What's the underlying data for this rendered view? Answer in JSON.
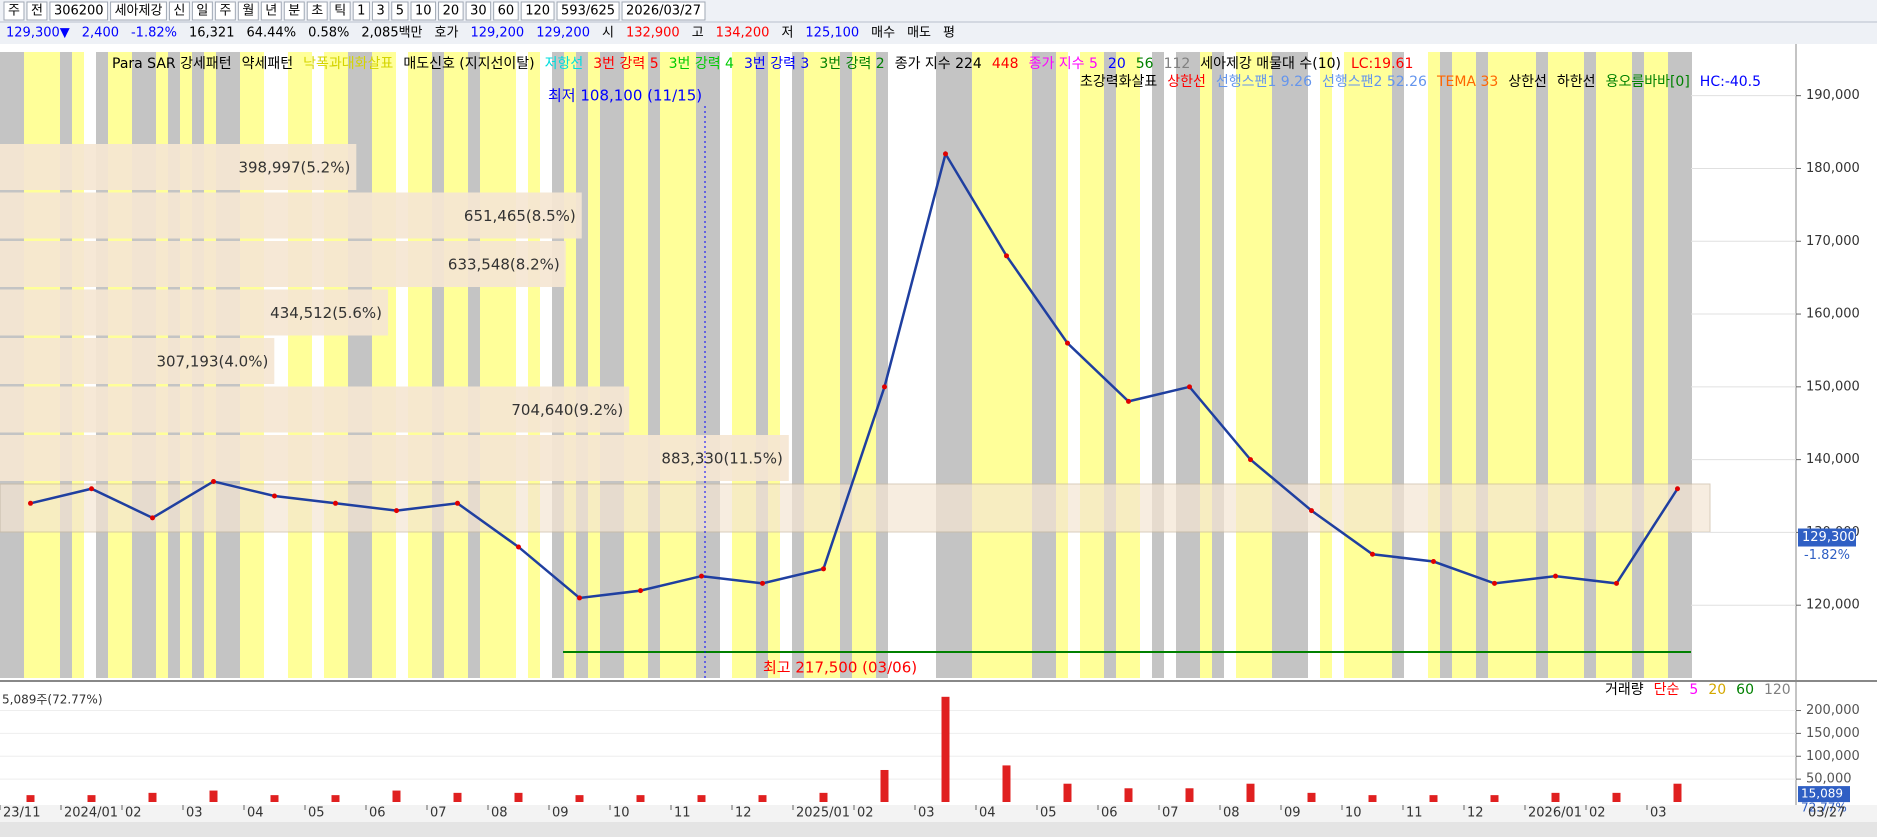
{
  "toolbar": {
    "items": [
      "주",
      "전",
      "306200",
      "세아제강",
      "신",
      "일",
      "주",
      "월",
      "년",
      "분",
      "초",
      "틱",
      "1",
      "3",
      "5",
      "10",
      "20",
      "30",
      "60",
      "120",
      "593/625",
      "2026/03/27"
    ]
  },
  "info_bar": {
    "items": [
      {
        "text": "129,300▼",
        "color": "#0000ff"
      },
      {
        "text": "2,400",
        "color": "#0000ff"
      },
      {
        "text": "-1.82%",
        "color": "#0000ff"
      },
      {
        "text": "16,321",
        "color": "#000000"
      },
      {
        "text": "64.44%",
        "color": "#000000"
      },
      {
        "text": "0.58%",
        "color": "#000000"
      },
      {
        "text": "2,085백만",
        "color": "#000000"
      },
      {
        "text": "호가",
        "color": "#000000"
      },
      {
        "text": "129,200",
        "color": "#0000ff"
      },
      {
        "text": "129,200",
        "color": "#0000ff"
      },
      {
        "text": "시",
        "color": "#000000"
      },
      {
        "text": "132,900",
        "color": "#ff0000"
      },
      {
        "text": "고",
        "color": "#000000"
      },
      {
        "text": "134,200",
        "color": "#ff0000"
      },
      {
        "text": "저",
        "color": "#000000"
      },
      {
        "text": "125,100",
        "color": "#0000ff"
      },
      {
        "text": "매수",
        "color": "#000000"
      },
      {
        "text": "매도",
        "color": "#000000"
      },
      {
        "text": "평",
        "color": "#000000"
      }
    ]
  },
  "legend": {
    "row1": [
      {
        "text": "Para SAR 강세패턴",
        "color": "#000000"
      },
      {
        "text": "약세패턴",
        "color": "#000000"
      },
      {
        "text": "낙폭과대화살표",
        "color": "#d4d400"
      },
      {
        "text": "매도신호 (지지선이탈)",
        "color": "#000000"
      },
      {
        "text": "저항선",
        "color": "#00dddd"
      },
      {
        "text": "3번 강력 5",
        "color": "#ff0000"
      },
      {
        "text": "3번 강력 4",
        "color": "#00cc00"
      },
      {
        "text": "3번 강력 3",
        "color": "#0000ff"
      },
      {
        "text": "3번 강력 2",
        "color": "#008000"
      },
      {
        "text": "종가 지수 224",
        "color": "#000000"
      },
      {
        "text": "448",
        "color": "#ff0000"
      },
      {
        "text": "종가 지수 5",
        "color": "#ff00ff"
      },
      {
        "text": "20",
        "color": "#0000ff"
      },
      {
        "text": "56",
        "color": "#008000"
      },
      {
        "text": "112",
        "color": "#808080"
      },
      {
        "text": "세아제강 매물대 수(10)",
        "color": "#000000"
      },
      {
        "text": "LC:19.61",
        "color": "#ff0000"
      }
    ],
    "row2": [
      {
        "text": "초강력화살표",
        "color": "#000000"
      },
      {
        "text": "상한선",
        "color": "#ff0000"
      },
      {
        "text": "선행스팬1 9.26",
        "color": "#6495ed"
      },
      {
        "text": "선행스팬2 52.26",
        "color": "#6495ed"
      },
      {
        "text": "TEMA 33",
        "color": "#ff6600"
      },
      {
        "text": "상한선",
        "color": "#000000"
      },
      {
        "text": "하한선",
        "color": "#000000"
      },
      {
        "text": "용오름바바[0]",
        "color": "#008000"
      },
      {
        "text": "HC:-40.5",
        "color": "#0000ff"
      }
    ]
  },
  "volume_profile": {
    "color": "#f5e6d3",
    "values": [
      398997,
      651465,
      633548,
      434512,
      307193,
      704640,
      883330
    ],
    "value_labels": [
      "398,997(5.2%)",
      "651,465(8.5%)",
      "633,548(8.2%)",
      "434,512(5.6%)",
      "307,193(4.0%)",
      "704,640(9.2%)",
      "883,330(11.5%)"
    ]
  },
  "chart_data": [
    {
      "type": "line",
      "categories": [
        "23/11",
        "2024/01",
        "02",
        "03",
        "04",
        "05",
        "06",
        "07",
        "08",
        "09",
        "10",
        "11",
        "12",
        "2025/01",
        "02",
        "03",
        "04",
        "05",
        "06",
        "07",
        "08",
        "09",
        "10",
        "11",
        "12",
        "2026/01",
        "02",
        "03"
      ],
      "values": [
        134000,
        136000,
        132000,
        137000,
        135000,
        134000,
        133000,
        134000,
        128000,
        121000,
        122000,
        124000,
        123000,
        125000,
        150000,
        182000,
        168000,
        156000,
        148000,
        150000,
        140000,
        133000,
        127000,
        126000,
        123000,
        124000,
        123000,
        136000
      ],
      "color": "#1f3fa0",
      "ylim": [
        110000,
        196000
      ],
      "yticks": [
        {
          "value": 120000,
          "label": "120,000"
        },
        {
          "value": 130000,
          "label": "130,000"
        },
        {
          "value": 140000,
          "label": "140,000"
        },
        {
          "value": 150000,
          "label": "150,000"
        },
        {
          "value": 160000,
          "label": "160,000"
        },
        {
          "value": 170000,
          "label": "170,000"
        },
        {
          "value": 180000,
          "label": "180,000"
        },
        {
          "value": 190000,
          "label": "190,000"
        }
      ],
      "last_price": {
        "value": 129300,
        "label": "129,300"
      },
      "last_change": "-1.82%",
      "annotations": [
        {
          "text": "최저 108,100 (11/15)",
          "color": "#0000ff"
        },
        {
          "text": "최고 217,500 (03/06)",
          "color": "#ff0000"
        }
      ],
      "x_end_label": "03/27"
    },
    {
      "type": "bar",
      "values": [
        15000,
        15000,
        20000,
        25000,
        15000,
        15000,
        25000,
        20000,
        20000,
        15000,
        15000,
        15000,
        15000,
        20000,
        70000,
        230000,
        80000,
        40000,
        30000,
        30000,
        40000,
        20000,
        15000,
        15000,
        15000,
        20000,
        20000,
        40000
      ],
      "color": "#e02020",
      "ylim": [
        0,
        258000
      ],
      "yticks": [
        {
          "value": 50000,
          "label": "50,000"
        },
        {
          "value": 100000,
          "label": "100,000"
        },
        {
          "value": 150000,
          "label": "150,000"
        },
        {
          "value": 200000,
          "label": "200,000"
        }
      ],
      "legend": [
        {
          "text": "거래량",
          "color": "#000000"
        },
        {
          "text": "단순",
          "color": "#ff0000"
        },
        {
          "text": "5",
          "color": "#ff00ff"
        },
        {
          "text": "20",
          "color": "#d4a800"
        },
        {
          "text": "60",
          "color": "#008000"
        },
        {
          "text": "120",
          "color": "#808080"
        }
      ],
      "left_label": "5,089주(72.77%)",
      "last_volume": {
        "value": 15089,
        "label": "15,089"
      },
      "last_ratio": "72.77%"
    }
  ]
}
